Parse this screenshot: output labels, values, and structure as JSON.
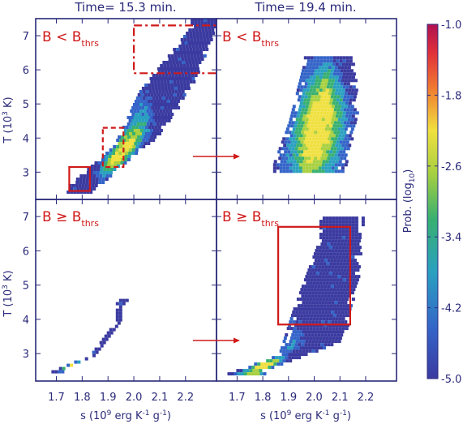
{
  "chart_data": {
    "type": "heatmap",
    "panel_titles": [
      "Time= 15.3 min.",
      "Time= 19.4 min."
    ],
    "xlabel": "s (10",
    "xlabel_sup": "9",
    "xlabel_rest": " erg K",
    "xlabel_sup2": "-1",
    "xlabel_rest2": " g",
    "xlabel_sup3": "-1",
    "xlabel_end": ")",
    "ylabel": "T (10",
    "ylabel_sup": "3",
    "ylabel_end": " K)",
    "xlim": [
      1.62,
      2.32
    ],
    "ylim": [
      2.2,
      7.5
    ],
    "x_ticks": [
      "1.7",
      "1.8",
      "1.9",
      "2.0",
      "2.1",
      "2.2"
    ],
    "x_tick_values": [
      1.7,
      1.8,
      1.9,
      2.0,
      2.1,
      2.2
    ],
    "y_ticks": [
      "3",
      "4",
      "5",
      "6",
      "7"
    ],
    "y_tick_values": [
      3,
      4,
      5,
      6,
      7
    ],
    "rows": [
      {
        "condition": "B < B",
        "sub": "thrs"
      },
      {
        "condition": "B ≥ B",
        "sub": "thrs"
      }
    ],
    "colorbar": {
      "label": "Prob. (log",
      "label_sub": "10",
      "label_end": ")",
      "range": [
        -5.0,
        -1.0
      ],
      "ticks": [
        "-1.0",
        "-1.8",
        "-2.6",
        "-3.4",
        "-4.2",
        "-5.0"
      ],
      "tick_values": [
        -1.0,
        -1.8,
        -2.6,
        -3.4,
        -4.2,
        -5.0
      ]
    },
    "panels": [
      {
        "name": "top-left",
        "distribution": {
          "lower_edge": [
            [
              1.74,
              2.6
            ],
            [
              1.92,
              3.8
            ],
            [
              2.02,
              5.4
            ],
            [
              2.22,
              7.3
            ]
          ],
          "upper_edge": [
            [
              1.82,
              2.4
            ],
            [
              2.1,
              4.2
            ],
            [
              2.22,
              5.6
            ],
            [
              2.32,
              7.5
            ]
          ],
          "peak": [
            1.94,
            3.9
          ]
        },
        "boxes": [
          {
            "style": "solid",
            "x": [
              1.75,
              1.83
            ],
            "y": [
              2.45,
              3.15
            ]
          },
          {
            "style": "dashed",
            "x": [
              1.88,
              1.96
            ],
            "y": [
              3.15,
              4.3
            ]
          },
          {
            "style": "dash-dot",
            "x": [
              2.0,
              2.33
            ],
            "y": [
              5.9,
              7.3
            ]
          }
        ]
      },
      {
        "name": "top-right",
        "distribution": {
          "lower_edge": [
            [
              1.84,
              3.3
            ],
            [
              1.9,
              4.5
            ],
            [
              1.96,
              6.3
            ]
          ],
          "upper_edge": [
            [
              2.1,
              3.0
            ],
            [
              2.16,
              4.8
            ],
            [
              2.14,
              6.4
            ]
          ],
          "peak": [
            2.0,
            4.4
          ]
        },
        "boxes": []
      },
      {
        "name": "bottom-left",
        "distribution": {
          "lower_edge": [
            [
              1.66,
              2.45
            ],
            [
              1.83,
              3.0
            ],
            [
              1.93,
              4.0
            ]
          ],
          "upper_edge": [
            [
              1.72,
              2.9
            ],
            [
              1.9,
              3.7
            ],
            [
              1.97,
              4.6
            ]
          ],
          "peak": [
            1.75,
            2.6
          ]
        },
        "boxes": []
      },
      {
        "name": "bottom-right",
        "distribution": {
          "lower_edge": [
            [
              1.66,
              2.45
            ],
            [
              1.86,
              3.0
            ],
            [
              1.92,
              4.4
            ],
            [
              2.02,
              6.4
            ]
          ],
          "upper_edge": [
            [
              1.8,
              2.55
            ],
            [
              2.1,
              3.4
            ],
            [
              2.16,
              5.2
            ],
            [
              2.18,
              7.0
            ]
          ],
          "peak": [
            1.8,
            2.6
          ]
        },
        "boxes": [
          {
            "style": "solid",
            "x": [
              1.86,
              2.14
            ],
            "y": [
              3.85,
              6.7
            ]
          }
        ]
      }
    ],
    "arrows": [
      "top-left-to-top-right",
      "bottom-left-to-bottom-right"
    ]
  }
}
